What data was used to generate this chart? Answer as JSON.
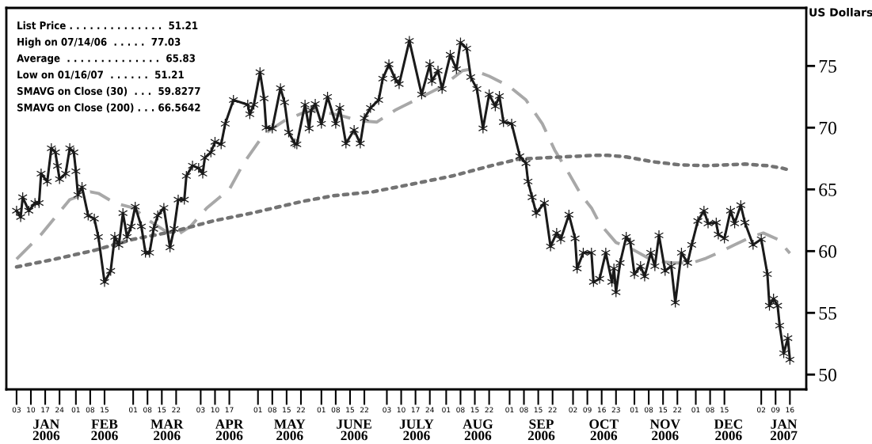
{
  "chart_data": {
    "type": "line",
    "ylabel": "US Dollars",
    "grid": false,
    "xlim": [
      "2005-12-29",
      "2007-01-24"
    ],
    "ylim": [
      48.8,
      79.7
    ],
    "yticks": [
      50,
      55,
      60,
      65,
      70,
      75
    ],
    "xticks": [
      {
        "value": "2006-01-03",
        "label": "03"
      },
      {
        "value": "2006-01-10",
        "label": "10"
      },
      {
        "value": "2006-01-17",
        "label": "17"
      },
      {
        "value": "2006-01-24",
        "label": "24"
      },
      {
        "value": "2006-02-01",
        "label": "01"
      },
      {
        "value": "2006-02-08",
        "label": "08"
      },
      {
        "value": "2006-02-15",
        "label": "15"
      },
      {
        "value": "2006-03-01",
        "label": "01"
      },
      {
        "value": "2006-03-08",
        "label": "08"
      },
      {
        "value": "2006-03-15",
        "label": "15"
      },
      {
        "value": "2006-03-22",
        "label": "22"
      },
      {
        "value": "2006-04-03",
        "label": "03"
      },
      {
        "value": "2006-04-10",
        "label": "10"
      },
      {
        "value": "2006-04-17",
        "label": "17"
      },
      {
        "value": "2006-05-01",
        "label": "01"
      },
      {
        "value": "2006-05-08",
        "label": "08"
      },
      {
        "value": "2006-05-15",
        "label": "15"
      },
      {
        "value": "2006-05-22",
        "label": "22"
      },
      {
        "value": "2006-06-01",
        "label": "01"
      },
      {
        "value": "2006-06-08",
        "label": "08"
      },
      {
        "value": "2006-06-15",
        "label": "15"
      },
      {
        "value": "2006-06-22",
        "label": "22"
      },
      {
        "value": "2006-07-03",
        "label": "03"
      },
      {
        "value": "2006-07-10",
        "label": "10"
      },
      {
        "value": "2006-07-17",
        "label": "17"
      },
      {
        "value": "2006-07-24",
        "label": "24"
      },
      {
        "value": "2006-08-01",
        "label": "01"
      },
      {
        "value": "2006-08-08",
        "label": "08"
      },
      {
        "value": "2006-08-15",
        "label": "15"
      },
      {
        "value": "2006-08-22",
        "label": "22"
      },
      {
        "value": "2006-09-01",
        "label": "01"
      },
      {
        "value": "2006-09-08",
        "label": "08"
      },
      {
        "value": "2006-09-15",
        "label": "15"
      },
      {
        "value": "2006-09-22",
        "label": "22"
      },
      {
        "value": "2006-10-02",
        "label": "02"
      },
      {
        "value": "2006-10-09",
        "label": "09"
      },
      {
        "value": "2006-10-16",
        "label": "16"
      },
      {
        "value": "2006-10-23",
        "label": "23"
      },
      {
        "value": "2006-11-01",
        "label": "01"
      },
      {
        "value": "2006-11-08",
        "label": "08"
      },
      {
        "value": "2006-11-15",
        "label": "15"
      },
      {
        "value": "2006-11-22",
        "label": "22"
      },
      {
        "value": "2006-12-01",
        "label": "01"
      },
      {
        "value": "2006-12-08",
        "label": "08"
      },
      {
        "value": "2006-12-15",
        "label": "15"
      },
      {
        "value": "2007-01-02",
        "label": "02"
      },
      {
        "value": "2007-01-09",
        "label": "09"
      },
      {
        "value": "2007-01-16",
        "label": "16"
      }
    ],
    "annotations": [
      "JAN\n2006",
      "FEB\n2006",
      "MAR\n2006",
      "APR\n2006",
      "MAY\n2006",
      "JUNE\n2006",
      "JULY\n2006",
      "AUG\n2006",
      "SEP\n2006",
      "OCT\n2006",
      "NOV\n2006",
      "DEC\n2006",
      "JAN\n2007",
      "List Price . . . . . . . . . . . . . .  51.21",
      "High on 07/14/06  . . . . .  77.03",
      "Average  . . . . . . . . . . . . . .  65.83",
      "Low on 01/16/07  . . . . . .  51.21",
      "SMAVG on Close (30)  . . .  59.8277",
      "SMAVG on Close (200) . . . 66.5642"
    ],
    "series": [
      {
        "color": "#a8a8a8",
        "line_style": "dashed",
        "marker": "none",
        "x": [
          "2006-01-03",
          "2006-01-15",
          "2006-01-29",
          "2006-02-08",
          "2006-02-12",
          "2006-02-20",
          "2006-03-01",
          "2006-03-09",
          "2006-03-17",
          "2006-03-23",
          "2006-03-29",
          "2006-04-06",
          "2006-04-17",
          "2006-04-24",
          "2006-05-04",
          "2006-05-14",
          "2006-05-23",
          "2006-05-29",
          "2006-06-02",
          "2006-06-11",
          "2006-06-19",
          "2006-06-28",
          "2006-07-07",
          "2006-07-17",
          "2006-07-30",
          "2006-08-09",
          "2006-08-13",
          "2006-08-22",
          "2006-09-01",
          "2006-09-09",
          "2006-09-17",
          "2006-09-23",
          "2006-09-30",
          "2006-10-06",
          "2006-10-11",
          "2006-10-15",
          "2006-10-23",
          "2006-11-01",
          "2006-11-10",
          "2006-11-20",
          "2006-11-29",
          "2006-12-06",
          "2006-12-12",
          "2006-12-20",
          "2006-12-28",
          "2007-01-03",
          "2007-01-10",
          "2007-01-16"
        ],
        "values": [
          59.36,
          61.35,
          64.17,
          64.8,
          64.68,
          63.9,
          63.5,
          62.44,
          61.6,
          61.35,
          62.0,
          63.5,
          65.0,
          67.12,
          69.49,
          70.58,
          71.2,
          71.41,
          71.28,
          70.96,
          70.58,
          70.45,
          71.41,
          72.24,
          73.33,
          74.62,
          74.74,
          74.17,
          73.33,
          72.24,
          70.32,
          68.2,
          66.28,
          64.55,
          63.5,
          62.24,
          60.7,
          60.06,
          59.23,
          59.04,
          59.04,
          59.42,
          59.87,
          60.51,
          61.15,
          61.47,
          60.96,
          59.83
        ]
      },
      {
        "color": "#737373",
        "line_style": "dotted",
        "marker": "none",
        "x": [
          "2006-01-03",
          "2006-01-22",
          "2006-02-10",
          "2006-03-01",
          "2006-03-21",
          "2006-04-09",
          "2006-04-28",
          "2006-05-23",
          "2006-06-07",
          "2006-06-26",
          "2006-07-16",
          "2006-08-04",
          "2006-08-23",
          "2006-09-05",
          "2006-09-18",
          "2006-10-13",
          "2006-10-19",
          "2006-10-28",
          "2006-11-10",
          "2006-11-23",
          "2006-12-06",
          "2006-12-25",
          "2007-01-05",
          "2007-01-12",
          "2007-01-16"
        ],
        "values": [
          58.72,
          59.36,
          60.06,
          60.96,
          61.6,
          62.44,
          63.08,
          64.04,
          64.49,
          64.8,
          65.45,
          66.09,
          66.92,
          67.44,
          67.56,
          67.76,
          67.76,
          67.63,
          67.24,
          66.99,
          66.92,
          67.05,
          66.92,
          66.73,
          66.56
        ]
      },
      {
        "color": "#1a1a1a",
        "line_style": "solid",
        "marker": "cross",
        "x": [
          "2006-01-03",
          "2006-01-05",
          "2006-01-06",
          "2006-01-09",
          "2006-01-12",
          "2006-01-14",
          "2006-01-15",
          "2006-01-18",
          "2006-01-20",
          "2006-01-22",
          "2006-01-23",
          "2006-01-24",
          "2006-01-27",
          "2006-01-29",
          "2006-01-31",
          "2006-02-01",
          "2006-02-02",
          "2006-02-04",
          "2006-02-07",
          "2006-02-10",
          "2006-02-12",
          "2006-02-15",
          "2006-02-18",
          "2006-02-20",
          "2006-02-22",
          "2006-02-24",
          "2006-02-26",
          "2006-02-28",
          "2006-03-02",
          "2006-03-05",
          "2006-03-07",
          "2006-03-09",
          "2006-03-11",
          "2006-03-13",
          "2006-03-16",
          "2006-03-19",
          "2006-03-21",
          "2006-03-23",
          "2006-03-26",
          "2006-03-27",
          "2006-03-30",
          "2006-04-02",
          "2006-04-04",
          "2006-04-05",
          "2006-04-08",
          "2006-04-10",
          "2006-04-13",
          "2006-04-15",
          "2006-04-19",
          "2006-04-26",
          "2006-04-27",
          "2006-04-29",
          "2006-05-02",
          "2006-05-04",
          "2006-05-05",
          "2006-05-08",
          "2006-05-12",
          "2006-05-14",
          "2006-05-16",
          "2006-05-19",
          "2006-05-20",
          "2006-05-24",
          "2006-05-26",
          "2006-05-27",
          "2006-05-29",
          "2006-06-01",
          "2006-06-04",
          "2006-06-08",
          "2006-06-10",
          "2006-06-13",
          "2006-06-17",
          "2006-06-20",
          "2006-06-22",
          "2006-06-25",
          "2006-06-29",
          "2006-07-01",
          "2006-07-04",
          "2006-07-07",
          "2006-07-09",
          "2006-07-14",
          "2006-07-20",
          "2006-07-24",
          "2006-07-25",
          "2006-07-28",
          "2006-07-30",
          "2006-08-03",
          "2006-08-06",
          "2006-08-08",
          "2006-08-11",
          "2006-08-13",
          "2006-08-16",
          "2006-08-19",
          "2006-08-22",
          "2006-08-25",
          "2006-08-27",
          "2006-08-29",
          "2006-09-02",
          "2006-09-06",
          "2006-09-09",
          "2006-09-10",
          "2006-09-12",
          "2006-09-14",
          "2006-09-18",
          "2006-09-21",
          "2006-09-24",
          "2006-09-26",
          "2006-09-30",
          "2006-10-03",
          "2006-10-04",
          "2006-10-07",
          "2006-10-11",
          "2006-10-12",
          "2006-10-15",
          "2006-10-18",
          "2006-10-21",
          "2006-10-22",
          "2006-10-23",
          "2006-10-25",
          "2006-10-28",
          "2006-10-30",
          "2006-11-01",
          "2006-11-04",
          "2006-11-06",
          "2006-11-09",
          "2006-11-11",
          "2006-11-13",
          "2006-11-16",
          "2006-11-19",
          "2006-11-21",
          "2006-11-24",
          "2006-11-27",
          "2006-11-29",
          "2006-12-02",
          "2006-12-05",
          "2006-12-07",
          "2006-12-11",
          "2006-12-12",
          "2006-12-15",
          "2006-12-18",
          "2006-12-20",
          "2006-12-23",
          "2006-12-25",
          "2006-12-29",
          "2007-01-02",
          "2007-01-05",
          "2007-01-06",
          "2007-01-08",
          "2007-01-10",
          "2007-01-11",
          "2007-01-13",
          "2007-01-15",
          "2007-01-16"
        ],
        "values": [
          63.27,
          62.76,
          64.36,
          63.27,
          63.9,
          63.9,
          66.28,
          65.64,
          68.33,
          68.0,
          66.9,
          65.83,
          66.28,
          68.33,
          68.0,
          66.47,
          64.55,
          65.19,
          62.88,
          62.63,
          61.15,
          57.5,
          58.4,
          61.15,
          60.5,
          63.08,
          61.15,
          62.0,
          63.6,
          62.0,
          59.87,
          59.87,
          61.8,
          62.88,
          63.5,
          60.3,
          61.8,
          64.17,
          64.17,
          66.09,
          66.92,
          66.73,
          66.28,
          67.56,
          68.0,
          68.85,
          68.65,
          70.32,
          72.24,
          71.86,
          71.09,
          71.86,
          74.49,
          72.37,
          70.0,
          69.94,
          73.2,
          72.05,
          69.62,
          68.72,
          68.65,
          71.86,
          69.94,
          71.41,
          71.92,
          70.32,
          72.5,
          70.32,
          71.6,
          68.72,
          69.81,
          68.72,
          70.77,
          71.6,
          72.24,
          73.97,
          75.13,
          73.97,
          73.53,
          77.03,
          72.69,
          75.13,
          73.78,
          74.62,
          73.14,
          75.9,
          74.74,
          76.9,
          76.41,
          74.1,
          73.14,
          69.94,
          72.69,
          71.73,
          72.56,
          70.45,
          70.32,
          67.69,
          67.12,
          65.64,
          64.36,
          63.08,
          63.9,
          60.38,
          61.47,
          60.96,
          62.95,
          61.03,
          58.59,
          59.87,
          59.87,
          57.5,
          57.76,
          59.87,
          57.5,
          58.59,
          56.67,
          59.04,
          61.15,
          60.7,
          58.14,
          58.78,
          57.95,
          59.87,
          58.78,
          61.28,
          58.4,
          58.78,
          55.83,
          59.87,
          59.04,
          60.51,
          62.44,
          63.27,
          62.24,
          62.31,
          61.35,
          61.03,
          63.27,
          62.24,
          63.72,
          62.31,
          60.51,
          60.96,
          58.14,
          55.58,
          56.15,
          55.58,
          53.97,
          51.73,
          52.95,
          51.21
        ]
      }
    ]
  }
}
